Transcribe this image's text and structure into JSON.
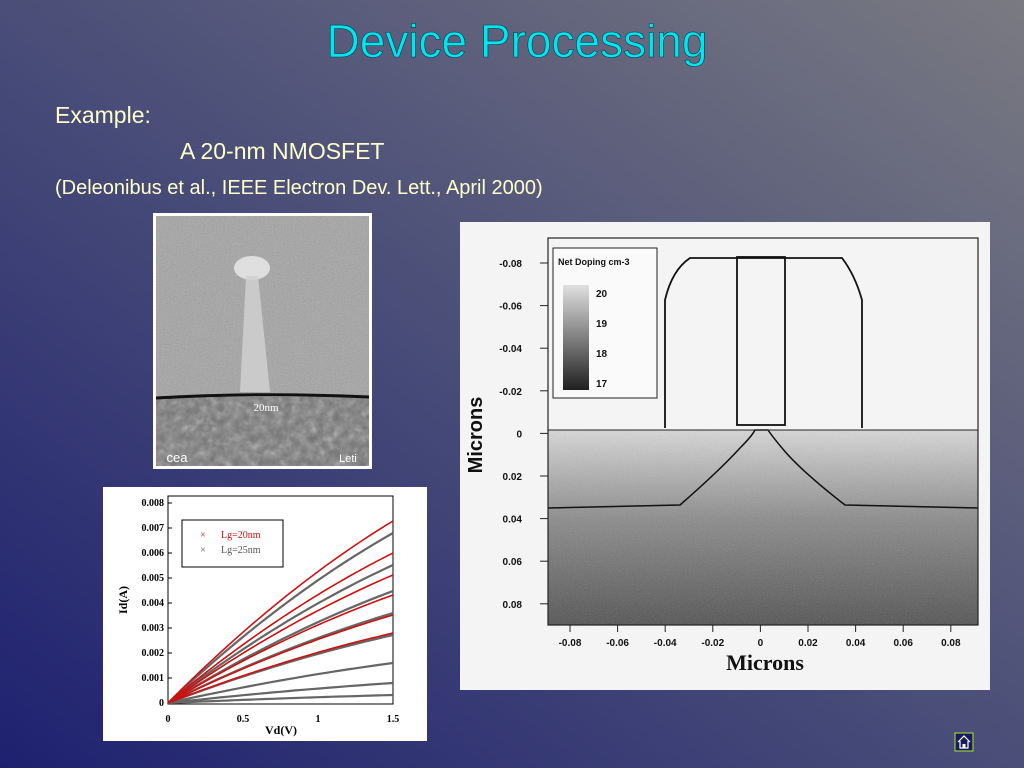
{
  "title": "Device Processing",
  "body": {
    "label": "Example:",
    "subject": "A 20-nm NMOSFET",
    "citation": "(Deleonibus et al., IEEE Electron Dev. Lett., April 2000)"
  },
  "sem_image": {
    "scale_label": "20nm",
    "logo": "cea",
    "corner": "Leti"
  },
  "doping_plot": {
    "legend_title": "Net Doping cm-3",
    "legend_levels": [
      "20",
      "19",
      "18",
      "17"
    ],
    "ylabel": "Microns",
    "xlabel": "Microns",
    "yticks": [
      "-0.08",
      "-0.06",
      "-0.04",
      "-0.02",
      "0",
      "0.02",
      "0.04",
      "0.06",
      "0.08"
    ],
    "xticks": [
      "-0.08",
      "-0.06",
      "-0.04",
      "-0.02",
      "0",
      "0.02",
      "0.04",
      "0.06",
      "0.08"
    ]
  },
  "id_plot": {
    "ylabel": "Id(A)",
    "xlabel": "Vd(V)",
    "legend": [
      "Lg=20nm",
      "Lg=25nm"
    ],
    "yticks": [
      "0",
      "0.001",
      "0.002",
      "0.003",
      "0.004",
      "0.005",
      "0.006",
      "0.007",
      "0.008"
    ],
    "xticks": [
      "0",
      "0.5",
      "1",
      "1.5"
    ]
  }
}
